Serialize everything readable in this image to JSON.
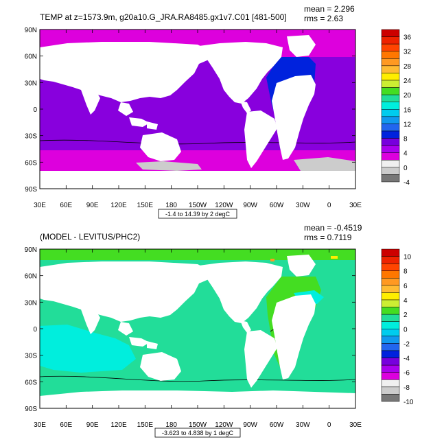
{
  "panels": [
    {
      "id": "top",
      "title": "TEMP at z=1573.9m, g20a10.G_JRA.RA8485.gx1v7.C01 [481-500]",
      "mean_text": "mean = 2.296",
      "rms_text": "rms = 2.63",
      "range_label": "-1.4 to 14.39 by 2 degC",
      "colorbar_labels": [
        "36",
        "32",
        "28",
        "24",
        "20",
        "16",
        "12",
        "8",
        "4",
        "0",
        "-4"
      ],
      "colorbar_colors": [
        "#cc0000",
        "#ee2200",
        "#ff4400",
        "#ff7700",
        "#ff9922",
        "#ffbb33",
        "#ffee00",
        "#ccee33",
        "#44dd22",
        "#22dd99",
        "#00eedd",
        "#00ccee",
        "#1199ee",
        "#2266ee",
        "#0022dd",
        "#7700dd",
        "#aa00ee",
        "#dd00dd",
        "#f0f0f0",
        "#cccccc",
        "#777777"
      ]
    },
    {
      "id": "bottom",
      "title": "(MODEL - LEVITUS/PHC2)",
      "mean_text": "mean = -0.4519",
      "rms_text": "rms = 0.7119",
      "range_label": "-3.623 to 4.838 by 1 degC",
      "colorbar_labels": [
        "10",
        "8",
        "6",
        "4",
        "2",
        "0",
        "-2",
        "-4",
        "-6",
        "-8",
        "-10"
      ],
      "colorbar_colors": [
        "#cc0000",
        "#ee2200",
        "#ff4400",
        "#ff7700",
        "#ff9922",
        "#ffbb33",
        "#ffee00",
        "#ccee33",
        "#44dd22",
        "#22dd99",
        "#00eedd",
        "#00ccee",
        "#1199ee",
        "#2266ee",
        "#0022dd",
        "#7700dd",
        "#aa00ee",
        "#dd00dd",
        "#f0f0f0",
        "#cccccc",
        "#777777"
      ]
    }
  ],
  "lat_labels": [
    "90N",
    "60N",
    "30N",
    "0",
    "30S",
    "60S",
    "90S"
  ],
  "lon_labels": [
    "30E",
    "60E",
    "90E",
    "120E",
    "150E",
    "180",
    "150W",
    "120W",
    "90W",
    "60W",
    "30W",
    "0",
    "30E"
  ],
  "colors": {
    "land": "#ffffff",
    "ice": "#cccccc",
    "purple": "#8800dd",
    "magenta": "#dd00dd",
    "blue": "#0022dd",
    "cyan": "#00eedd",
    "teal": "#22dd99",
    "green": "#44dd22",
    "frame": "#000000"
  }
}
